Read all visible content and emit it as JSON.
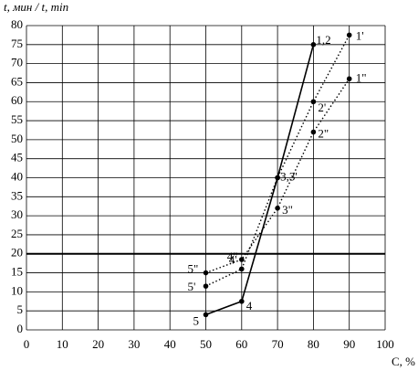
{
  "chart_data": {
    "type": "line",
    "ylabel": "t, мин / t, min",
    "xlabel": "C, %",
    "xlim": [
      0,
      100
    ],
    "xticks": [
      0,
      10,
      20,
      30,
      40,
      50,
      60,
      70,
      80,
      90,
      100
    ],
    "ylim": [
      0,
      80
    ],
    "yticks": [
      0,
      5,
      10,
      15,
      20,
      25,
      30,
      35,
      40,
      45,
      50,
      55,
      60,
      65,
      70,
      75,
      80
    ],
    "grid": true,
    "reference_line": 20,
    "series": [
      {
        "color": "#000000",
        "style": "solid",
        "x": [
          50,
          60,
          70,
          80
        ],
        "values": [
          4,
          7.5,
          40,
          75
        ],
        "point_labels": [
          "5",
          "4",
          "3,3'",
          "1,2"
        ]
      },
      {
        "color": "#000000",
        "style": "dotted",
        "x": [
          50,
          60,
          70,
          80,
          90
        ],
        "values": [
          11.5,
          16,
          40,
          60,
          77.5
        ],
        "point_labels": [
          "5'",
          "4'",
          null,
          "2'",
          "1'"
        ]
      },
      {
        "color": "#000000",
        "style": "dotted",
        "x": [
          50,
          60,
          70,
          80,
          90
        ],
        "values": [
          15,
          18.5,
          32,
          52,
          66
        ],
        "point_labels": [
          "5\"",
          "4\"",
          "3\"",
          "2\"",
          "1\""
        ]
      }
    ]
  }
}
